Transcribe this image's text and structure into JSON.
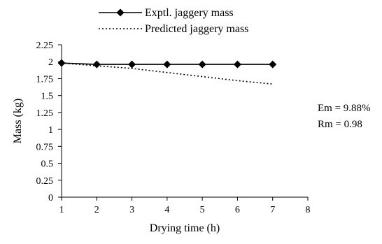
{
  "chart_data": {
    "type": "line",
    "title": "",
    "xlabel": "Drying time (h)",
    "ylabel": "Mass (kg)",
    "xlim": [
      1,
      8
    ],
    "ylim": [
      0,
      2.25
    ],
    "x_ticks": [
      "1",
      "2",
      "3",
      "4",
      "5",
      "6",
      "7",
      "8"
    ],
    "y_ticks": [
      "0",
      "0.25",
      "0.5",
      "0.75",
      "1",
      "1.25",
      "1.5",
      "1.75",
      "2",
      "2.25"
    ],
    "grid": false,
    "legend_position": "top-center",
    "series": [
      {
        "name": "Exptl. jaggery mass",
        "style": "solid-diamond",
        "color": "#000000",
        "x": [
          1,
          2,
          3,
          4,
          5,
          6,
          7
        ],
        "y": [
          1.98,
          1.96,
          1.96,
          1.96,
          1.96,
          1.96,
          1.96
        ]
      },
      {
        "name": "Predicted jaggery mass",
        "style": "dotted",
        "color": "#000000",
        "x": [
          1,
          2,
          3,
          4,
          5,
          6,
          7
        ],
        "y": [
          1.98,
          1.94,
          1.9,
          1.84,
          1.78,
          1.72,
          1.67
        ]
      }
    ],
    "annotations": [
      "Em = 9.88%",
      "Rm = 0.98"
    ]
  }
}
